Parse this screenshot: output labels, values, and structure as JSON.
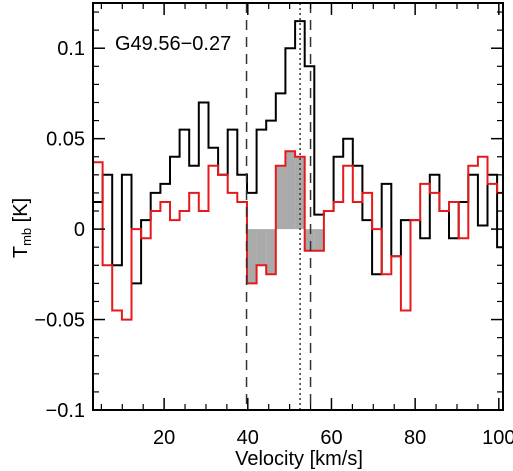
{
  "chart_data": {
    "type": "line",
    "title": "G49.56−0.27",
    "xlabel": "Velocity [km/s]",
    "ylabel_main": "T",
    "ylabel_sub": "mb",
    "ylabel_unit": " [K]",
    "xlim": [
      3,
      101
    ],
    "ylim": [
      -0.1,
      0.125
    ],
    "xticks": [
      20,
      40,
      60,
      80,
      100
    ],
    "xtick_labels": [
      "20",
      "40",
      "60",
      "80",
      "100"
    ],
    "yticks": [
      -0.1,
      -0.05,
      0,
      0.05,
      0.1
    ],
    "ytick_labels": [
      "−0.1",
      "−0.05",
      "0",
      "0.05",
      "0.1"
    ],
    "grid": false,
    "step_width": 2.3,
    "x": [
      3,
      5.3,
      7.6,
      9.9,
      12.2,
      14.5,
      16.8,
      19.1,
      21.4,
      23.7,
      26.0,
      28.3,
      30.6,
      32.9,
      35.2,
      37.5,
      39.8,
      42.1,
      44.4,
      46.7,
      49.0,
      51.3,
      53.6,
      55.9,
      58.2,
      60.5,
      62.8,
      65.1,
      67.4,
      69.7,
      72.0,
      74.3,
      76.6,
      78.9,
      81.2,
      83.5,
      85.8,
      88.1,
      90.4,
      92.7,
      95.0,
      97.3,
      99.6
    ],
    "series": [
      {
        "color": "#000000",
        "values": [
          0.015,
          0.03,
          -0.02,
          0.03,
          -0.03,
          0.005,
          0.02,
          0.025,
          0.04,
          0.055,
          0.035,
          0.07,
          0.045,
          0.03,
          0.055,
          0.03,
          0.02,
          0.055,
          0.06,
          0.075,
          0.1,
          0.115,
          0.09,
          0.008,
          0.01,
          0.04,
          0.05,
          0.035,
          0.005,
          -0.025,
          0.025,
          -0.015,
          0.005,
          0.005,
          -0.005,
          0.03,
          0.01,
          -0.005,
          0.015,
          0.03,
          0.002,
          0.03,
          -0.01
        ]
      },
      {
        "color": "#e41a1c",
        "values": [
          0.037,
          -0.02,
          -0.045,
          -0.05,
          0,
          -0.005,
          0.01,
          0.015,
          0.005,
          0.01,
          0.02,
          0.01,
          0.035,
          0.03,
          0.02,
          0.015,
          -0.03,
          -0.02,
          -0.025,
          0.035,
          0.043,
          0.04,
          -0.012,
          -0.012,
          0.01,
          0.015,
          0.035,
          0.015,
          0.02,
          0,
          -0.025,
          -0.015,
          -0.045,
          0.005,
          0.025,
          0.02,
          0.01,
          0.015,
          -0.005,
          0.035,
          0.04,
          0.025,
          0.02
        ]
      }
    ],
    "shaded_x_range": [
      39.8,
      58.2
    ],
    "shade_color": "#aaaaaa",
    "vlines": [
      {
        "x": 39.7,
        "style": "dashed"
      },
      {
        "x": 52.5,
        "style": "dotted"
      },
      {
        "x": 55.0,
        "style": "dashed"
      }
    ]
  }
}
